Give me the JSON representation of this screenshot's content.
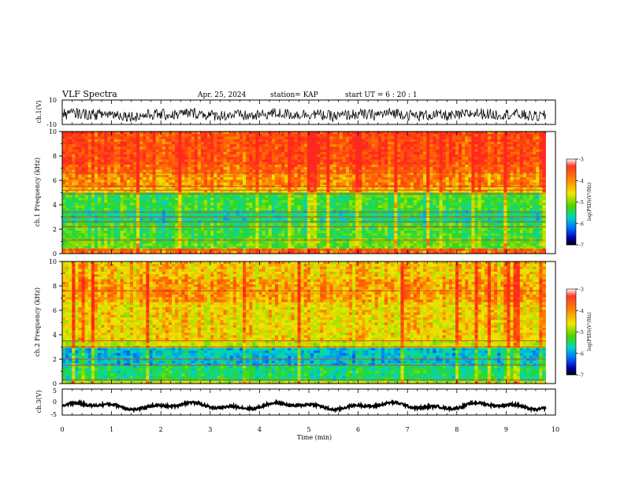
{
  "header": {
    "title": "VLF Spectra",
    "date": "Apr. 25, 2024",
    "station": "station= KAP",
    "start_ut": "start UT = 6 : 20 : 1"
  },
  "chart_data": {
    "type": "heatmap",
    "xlabel": "Time (min)",
    "xlim": [
      0,
      10
    ],
    "xticks": [
      "0",
      "1",
      "2",
      "3",
      "4",
      "5",
      "6",
      "7",
      "8",
      "9",
      "10"
    ],
    "data_end_min": 9.8,
    "panels": [
      {
        "id": "ch1-waveform",
        "type": "line",
        "ylabel": "ch.1(V)",
        "ylim": [
          -10,
          10
        ],
        "yticks": [
          "10",
          "-10"
        ],
        "center_offset_V": -2,
        "amplitude_V": 5
      },
      {
        "id": "ch1-spectrogram",
        "type": "heatmap",
        "ylabel": "ch.1 Frequency (kHz)",
        "ylim": [
          0,
          10
        ],
        "yticks": [
          "10",
          "8",
          "6",
          "4",
          "2",
          "0"
        ],
        "colorbar": {
          "label": "log(PSD)(V²/Hz)",
          "ticks": [
            "-3",
            "-4",
            "-5",
            "-6",
            "-7"
          ],
          "range": [
            -7,
            -3
          ]
        },
        "bands": [
          {
            "f0": 0.0,
            "f1": 0.4,
            "level": -3.6
          },
          {
            "f0": 0.4,
            "f1": 1.2,
            "level": -4.8
          },
          {
            "f0": 1.2,
            "f1": 2.6,
            "level": -5.0
          },
          {
            "f0": 2.6,
            "f1": 3.6,
            "level": -5.3
          },
          {
            "f0": 3.6,
            "f1": 5.0,
            "level": -5.0
          },
          {
            "f0": 5.0,
            "f1": 5.4,
            "level": -4.0
          },
          {
            "f0": 5.4,
            "f1": 6.6,
            "level": -3.7
          },
          {
            "f0": 6.6,
            "f1": 7.2,
            "level": -3.5
          },
          {
            "f0": 7.2,
            "f1": 10.0,
            "level": -3.3
          }
        ],
        "lines_kHz": [
          0.3,
          1.1,
          2.2,
          2.6,
          3.0,
          3.4,
          4.9,
          5.2,
          5.5,
          6.6
        ]
      },
      {
        "id": "ch2-spectrogram",
        "type": "heatmap",
        "ylabel": "ch.2 Frequency (kHz)",
        "ylim": [
          0,
          10
        ],
        "yticks": [
          "10",
          "8",
          "6",
          "4",
          "2",
          "0"
        ],
        "colorbar": {
          "label": "log(PSD)(V²/Hz)",
          "ticks": [
            "-3",
            "-4",
            "-5",
            "-6",
            "-7"
          ],
          "range": [
            -7,
            -3
          ]
        },
        "bands": [
          {
            "f0": 0.0,
            "f1": 0.3,
            "level": -4.4
          },
          {
            "f0": 0.3,
            "f1": 1.5,
            "level": -5.2
          },
          {
            "f0": 1.5,
            "f1": 3.0,
            "level": -5.6
          },
          {
            "f0": 3.0,
            "f1": 3.6,
            "level": -4.4
          },
          {
            "f0": 3.6,
            "f1": 6.6,
            "level": -4.1
          },
          {
            "f0": 6.6,
            "f1": 8.5,
            "level": -3.8
          },
          {
            "f0": 8.5,
            "f1": 10.0,
            "level": -4.0
          }
        ],
        "lines_kHz": [
          0.3,
          1.5,
          2.0,
          3.0,
          3.5,
          7.6
        ]
      },
      {
        "id": "ch3-waveform",
        "type": "line",
        "ylabel": "ch.3(V)",
        "ylim": [
          -5,
          5
        ],
        "yticks": [
          "5",
          "0",
          "-5"
        ],
        "center_offset_V": -1.5,
        "amplitude_V": 0.5
      }
    ]
  }
}
